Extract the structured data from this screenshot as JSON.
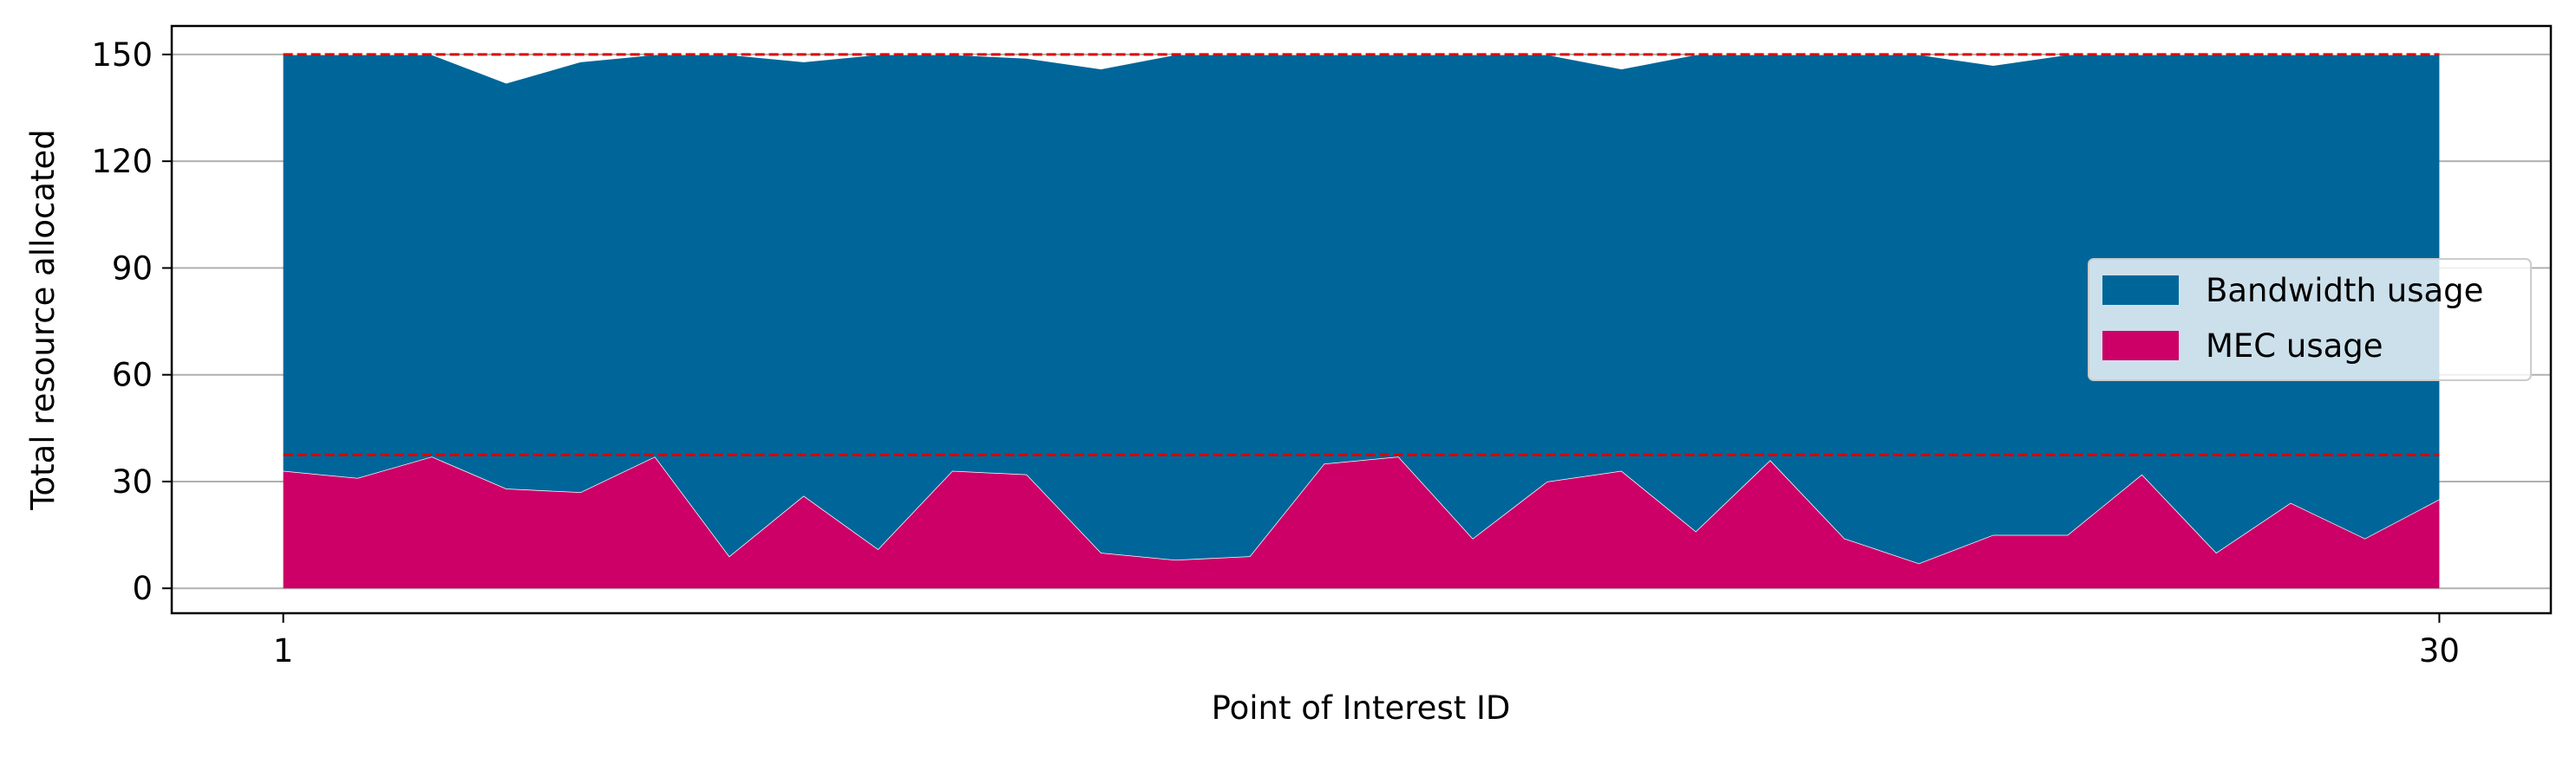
{
  "chart_data": {
    "type": "area",
    "stacked": true,
    "title": "",
    "xlabel": "Point of Interest ID",
    "ylabel": "Total resource allocated",
    "x": [
      1,
      2,
      3,
      4,
      5,
      6,
      7,
      8,
      9,
      10,
      11,
      12,
      13,
      14,
      15,
      16,
      17,
      18,
      19,
      20,
      21,
      22,
      23,
      24,
      25,
      26,
      27,
      28,
      29,
      30
    ],
    "xticks": [
      "1",
      "30"
    ],
    "xlim": [
      -0.5,
      31.5
    ],
    "ylim": [
      -7,
      158
    ],
    "yticks": [
      0,
      30,
      60,
      90,
      120,
      150
    ],
    "grid": "horizontal",
    "legend_position": "center-right",
    "series": [
      {
        "name": "MEC usage",
        "color": "#cc0066",
        "values": [
          33,
          31,
          37,
          28,
          27,
          37,
          9,
          26,
          11,
          33,
          32,
          10,
          8,
          9,
          35,
          37,
          14,
          30,
          33,
          16,
          36,
          14,
          7,
          15,
          15,
          32,
          10,
          24,
          14,
          25
        ]
      },
      {
        "name": "Bandwidth usage",
        "color": "#006699",
        "values": [
          117,
          119,
          113,
          114,
          121,
          113,
          141,
          122,
          139,
          117,
          117,
          136,
          142,
          141,
          115,
          113,
          136,
          120,
          113,
          134,
          114,
          136,
          143,
          132,
          135,
          118,
          140,
          126,
          136,
          125
        ]
      }
    ],
    "reference_lines": [
      {
        "y": 150,
        "color": "#dd0000",
        "style": "dashed"
      },
      {
        "y": 37.5,
        "color": "#dd0000",
        "style": "dashed"
      }
    ]
  }
}
